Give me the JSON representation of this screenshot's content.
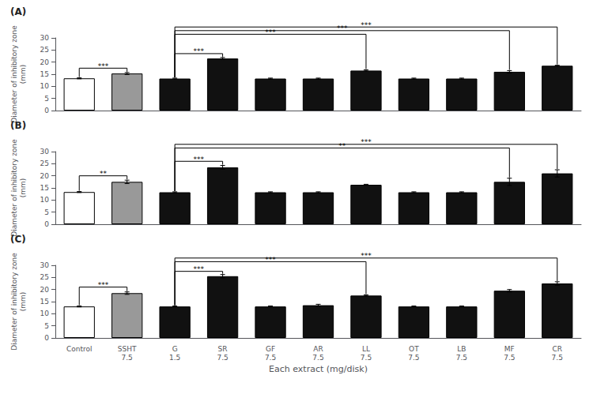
{
  "chart_data": [
    {
      "type": "bar",
      "title": "(A)",
      "categories": [
        "Control",
        "SSHT\n7.5",
        "G\n1.5",
        "SR\n7.5",
        "GF\n7.5",
        "AR\n7.5",
        "LL\n7.5",
        "OT\n7.5",
        "LB\n7.5",
        "MF\n7.5",
        "CR\n7.5"
      ],
      "values": [
        13.3,
        15.3,
        13.2,
        21.5,
        13.2,
        13.2,
        16.5,
        13.2,
        13.2,
        16.0,
        18.5
      ],
      "errors": [
        0.2,
        0.4,
        0.2,
        0.4,
        0.2,
        0.2,
        0.3,
        0.2,
        0.2,
        0.5,
        0.2
      ],
      "colors": [
        "white",
        "#999999",
        "#111111",
        "#111111",
        "#111111",
        "#111111",
        "#111111",
        "#111111",
        "#111111",
        "#111111",
        "#111111"
      ],
      "edge_colors": [
        "black",
        "black",
        "black",
        "black",
        "black",
        "black",
        "black",
        "black",
        "black",
        "black",
        "black"
      ],
      "ylabel": "Diameter of inhibitory zone\n(mm)",
      "ylim": [
        0,
        30
      ],
      "yticks": [
        0,
        5,
        10,
        15,
        20,
        25,
        30
      ],
      "grid": false,
      "tick_labels": "y",
      "significance": [
        {
          "from": "Control",
          "to": "SSHT\n7.5",
          "label": "***",
          "height": 17.5
        },
        {
          "from": "G\n1.5",
          "to": "SR\n7.5",
          "label": "***",
          "height": 23.5
        },
        {
          "from": "G\n1.5",
          "to": "LL\n7.5",
          "label": "***",
          "height": 31.5
        },
        {
          "from": "G\n1.5",
          "to": "MF\n7.5",
          "label": "***",
          "height": 33.0
        },
        {
          "from": "G\n1.5",
          "to": "CR\n7.5",
          "label": "***",
          "height": 34.5
        }
      ]
    },
    {
      "type": "bar",
      "title": "(B)",
      "categories": [
        "Control",
        "SSHT\n7.5",
        "G\n1.5",
        "SR\n7.5",
        "GF\n7.5",
        "AR\n7.5",
        "LL\n7.5",
        "OT\n7.5",
        "LB\n7.5",
        "MF\n7.5",
        "CR\n7.5"
      ],
      "values": [
        13.3,
        17.5,
        13.2,
        23.5,
        13.2,
        13.2,
        16.3,
        13.2,
        13.2,
        17.5,
        21.0
      ],
      "errors": [
        0.2,
        0.7,
        0.2,
        0.8,
        0.2,
        0.2,
        0.2,
        0.2,
        0.2,
        1.5,
        1.5
      ],
      "colors": [
        "white",
        "#999999",
        "#111111",
        "#111111",
        "#111111",
        "#111111",
        "#111111",
        "#111111",
        "#111111",
        "#111111",
        "#111111"
      ],
      "edge_colors": [
        "black",
        "black",
        "black",
        "black",
        "black",
        "black",
        "black",
        "black",
        "black",
        "black",
        "black"
      ],
      "ylabel": "Diameter of inhibitory zone\n(mm)",
      "ylim": [
        0,
        30
      ],
      "yticks": [
        0,
        5,
        10,
        15,
        20,
        25,
        30
      ],
      "grid": false,
      "tick_labels": "y",
      "significance": [
        {
          "from": "Control",
          "to": "SSHT\n7.5",
          "label": "**",
          "height": 20.0
        },
        {
          "from": "G\n1.5",
          "to": "SR\n7.5",
          "label": "***",
          "height": 26.0
        },
        {
          "from": "G\n1.5",
          "to": "MF\n7.5",
          "label": "**",
          "height": 31.5
        },
        {
          "from": "G\n1.5",
          "to": "CR\n7.5",
          "label": "***",
          "height": 33.0
        }
      ]
    },
    {
      "type": "bar",
      "title": "(C)",
      "categories": [
        "Control",
        "SSHT\n7.5",
        "G\n1.5",
        "SR\n7.5",
        "GF\n7.5",
        "AR\n7.5",
        "LL\n7.5",
        "OT\n7.5",
        "LB\n7.5",
        "MF\n7.5",
        "CR\n7.5"
      ],
      "values": [
        13.0,
        18.5,
        13.0,
        25.5,
        13.0,
        13.5,
        17.5,
        13.0,
        13.0,
        19.5,
        22.5
      ],
      "errors": [
        0.2,
        0.5,
        0.2,
        0.7,
        0.2,
        0.4,
        0.3,
        0.2,
        0.2,
        0.5,
        0.7
      ],
      "colors": [
        "white",
        "#999999",
        "#111111",
        "#111111",
        "#111111",
        "#111111",
        "#111111",
        "#111111",
        "#111111",
        "#111111",
        "#111111"
      ],
      "edge_colors": [
        "black",
        "black",
        "black",
        "black",
        "black",
        "black",
        "black",
        "black",
        "black",
        "black",
        "black"
      ],
      "xlabel": "Each extract (mg/disk)",
      "ylabel": "Diameter of inhibitory zone\n(mm)",
      "ylim": [
        0,
        30
      ],
      "yticks": [
        0,
        5,
        10,
        15,
        20,
        25,
        30
      ],
      "grid": false,
      "significance": [
        {
          "from": "Control",
          "to": "SSHT\n7.5",
          "label": "***",
          "height": 21.0
        },
        {
          "from": "G\n1.5",
          "to": "SR\n7.5",
          "label": "***",
          "height": 27.5
        },
        {
          "from": "G\n1.5",
          "to": "LL\n7.5",
          "label": "***",
          "height": 31.5
        },
        {
          "from": "G\n1.5",
          "to": "CR\n7.5",
          "label": "***",
          "height": 33.0
        }
      ]
    }
  ]
}
